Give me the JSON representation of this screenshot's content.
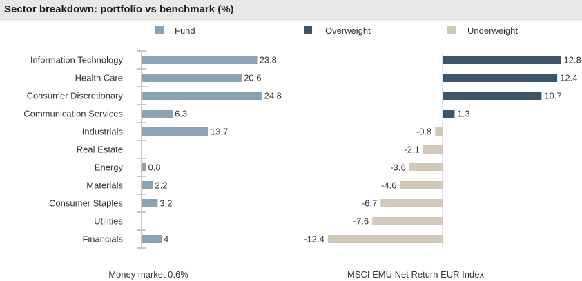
{
  "title": "Sector breakdown: portfolio vs benchmark (%)",
  "legend": [
    {
      "label": "Fund",
      "color": "#8aa3b5"
    },
    {
      "label": "Overweight",
      "color": "#3e5468"
    },
    {
      "label": "Underweight",
      "color": "#d1c8ba"
    }
  ],
  "chart_data": {
    "type": "bar",
    "orientation": "horizontal",
    "categories": [
      "Information Technology",
      "Health Care",
      "Consumer Discretionary",
      "Communication Services",
      "Industrials",
      "Real Estate",
      "Energy",
      "Materials",
      "Consumer Staples",
      "Utilities",
      "Financials"
    ],
    "series": [
      {
        "name": "Fund",
        "values": [
          23.8,
          20.6,
          24.8,
          6.3,
          13.7,
          null,
          0.8,
          2.2,
          3.2,
          null,
          4
        ]
      },
      {
        "name": "Overweight / Underweight",
        "values": [
          12.8,
          12.4,
          10.7,
          1.3,
          -0.8,
          -2.1,
          -3.6,
          -4.6,
          -6.7,
          -7.6,
          -12.4
        ]
      }
    ],
    "fund_labels": [
      "23.8",
      "20.6",
      "24.8",
      "6.3",
      "13.7",
      "",
      "0.8",
      "2.2",
      "3.2",
      "",
      "4"
    ],
    "diff_labels": [
      "12.8",
      "12.4",
      "10.7",
      "1.3",
      "-0.8",
      "-2.1",
      "-3.6",
      "-4.6",
      "-6.7",
      "-7.6",
      "-12.4"
    ],
    "colors": {
      "fund": "#8aa3b5",
      "overweight": "#3e5468",
      "underweight": "#d1c8ba",
      "axis": "#c8c8c8"
    }
  },
  "footer": {
    "left": "Money market 0.6%",
    "right": "MSCI EMU Net Return EUR Index"
  }
}
